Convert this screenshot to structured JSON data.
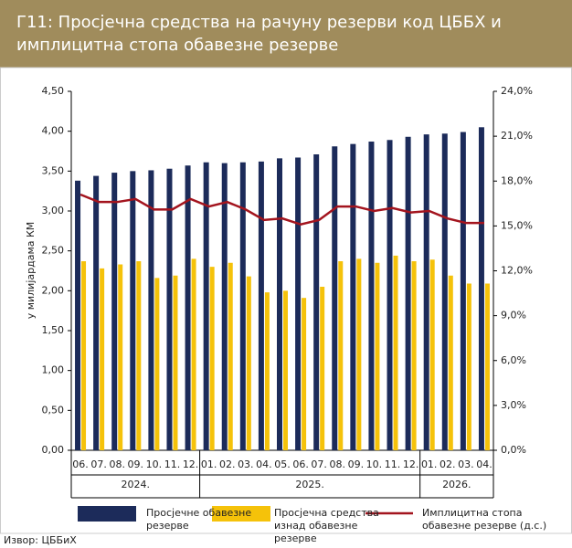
{
  "chart_data": {
    "type": "bar_line",
    "title": "Г11: Просјечна средства на рачуну резерви код ЦББХ и имплицитна стопа обавезне резерве",
    "y_label": "у милијардама КМ",
    "groups": [
      {
        "label": "2024.",
        "categories": [
          "06.",
          "07.",
          "08.",
          "09.",
          "10.",
          "11.",
          "12."
        ]
      },
      {
        "label": "2025.",
        "categories": [
          "01.",
          "02.",
          "03.",
          "04.",
          "05.",
          "06.",
          "07.",
          "08.",
          "09.",
          "10.",
          "11.",
          "12."
        ]
      },
      {
        "label": "2026.",
        "categories": [
          "01.",
          "02.",
          "03.",
          "04."
        ]
      }
    ],
    "series": [
      {
        "name": "Просјечне обавезне резерве",
        "type": "bar",
        "color": "#1c2b5a",
        "values": [
          3.38,
          3.44,
          3.48,
          3.5,
          3.51,
          3.53,
          3.57,
          3.61,
          3.6,
          3.61,
          3.62,
          3.66,
          3.67,
          3.71,
          3.81,
          3.84,
          3.87,
          3.89,
          3.93,
          3.96,
          3.97,
          3.99,
          4.05
        ]
      },
      {
        "name": "Просјечна средства изнад обавезне резерве",
        "type": "bar",
        "color": "#f5c20a",
        "values": [
          2.37,
          2.28,
          2.33,
          2.37,
          2.16,
          2.19,
          2.4,
          2.3,
          2.35,
          2.18,
          1.98,
          2.0,
          1.91,
          2.05,
          2.37,
          2.4,
          2.35,
          2.44,
          2.37,
          2.39,
          2.19,
          2.09,
          2.09
        ]
      },
      {
        "name": "Имплицитна стопа обавезне резерве (д.с.)",
        "type": "line",
        "axis": "y2",
        "color": "#a3141e",
        "values": [
          17.1,
          16.6,
          16.6,
          16.8,
          16.1,
          16.1,
          16.8,
          16.3,
          16.6,
          16.1,
          15.4,
          15.5,
          15.1,
          15.4,
          16.3,
          16.3,
          16.0,
          16.2,
          15.9,
          16.0,
          15.5,
          15.2,
          15.2
        ]
      }
    ],
    "ylim": [
      0,
      4.5
    ],
    "yticks": [
      {
        "value": 0,
        "label": "0,00"
      },
      {
        "value": 0.5,
        "label": "0,50"
      },
      {
        "value": 1,
        "label": "1,00"
      },
      {
        "value": 1.5,
        "label": "1,50"
      },
      {
        "value": 2,
        "label": "2,00"
      },
      {
        "value": 2.5,
        "label": "2,50"
      },
      {
        "value": 3,
        "label": "3,00"
      },
      {
        "value": 3.5,
        "label": "3,50"
      },
      {
        "value": 4,
        "label": "4,00"
      },
      {
        "value": 4.5,
        "label": "4,50"
      }
    ],
    "y2lim": [
      0,
      24
    ],
    "y2ticks": [
      {
        "value": 0,
        "label": "0,0%"
      },
      {
        "value": 3,
        "label": "3,0%"
      },
      {
        "value": 6,
        "label": "6,0%"
      },
      {
        "value": 9,
        "label": "9,0%"
      },
      {
        "value": 12,
        "label": "12,0%"
      },
      {
        "value": 15,
        "label": "15,0%"
      },
      {
        "value": 18,
        "label": "18,0%"
      },
      {
        "value": 21,
        "label": "21,0%"
      },
      {
        "value": 24,
        "label": "24,0%"
      }
    ],
    "source": "Извор: ЦББиХ"
  }
}
